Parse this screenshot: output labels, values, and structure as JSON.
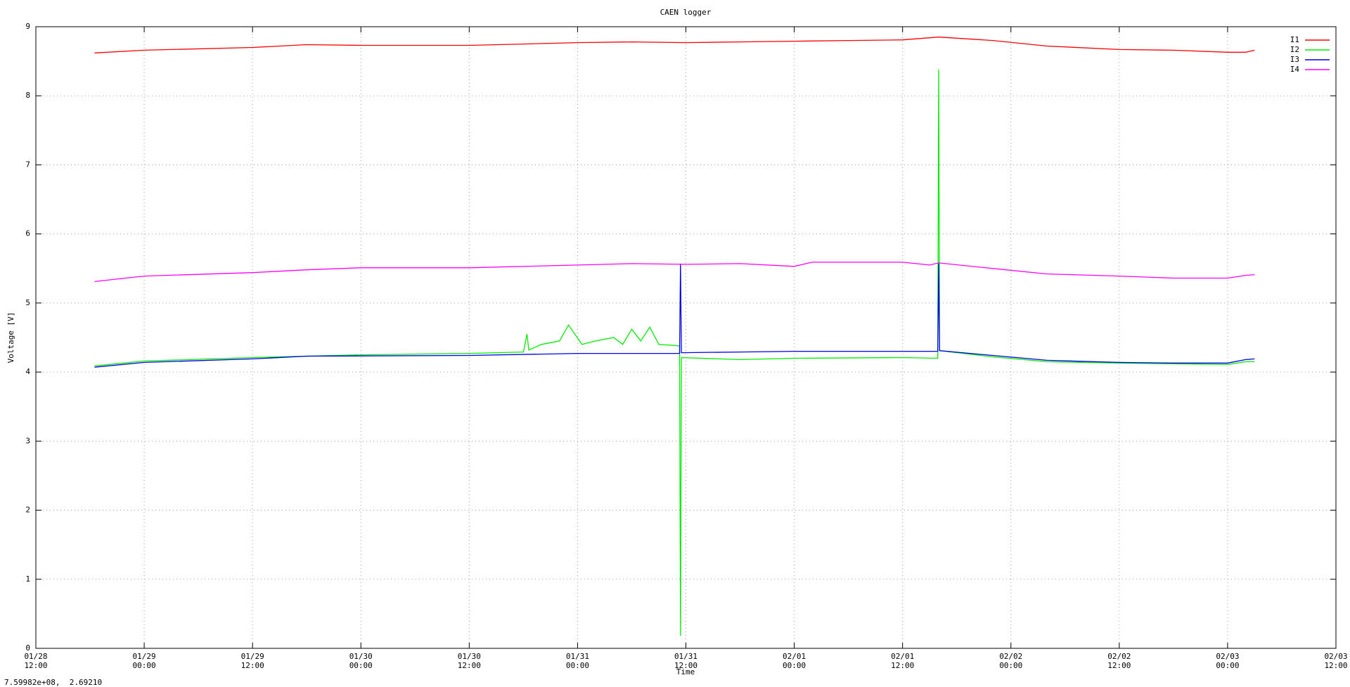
{
  "chart_data": {
    "type": "line",
    "title": "CAEN logger",
    "xlabel": "Time",
    "ylabel": "Voltage [V]",
    "status": "7.59982e+08,  2.69210",
    "grid": true,
    "legend": "upper right",
    "xlim": [
      "01/28 12:00",
      "02/03 12:00"
    ],
    "xticks": [
      "01/28 12:00",
      "01/29 00:00",
      "01/29 12:00",
      "01/30 00:00",
      "01/30 12:00",
      "01/31 00:00",
      "01/31 12:00",
      "02/01 00:00",
      "02/01 12:00",
      "02/02 00:00",
      "02/02 12:00",
      "02/03 00:00",
      "02/03 12:00"
    ],
    "ylim": [
      0,
      9
    ],
    "yticks": [
      0,
      1,
      2,
      3,
      4,
      5,
      6,
      7,
      8,
      9
    ],
    "series": [
      {
        "name": "I1",
        "color": "#ff0000",
        "x": [
          "01/28 18:30",
          "01/29 00:00",
          "01/29 12:00",
          "01/29 18:00",
          "01/30 00:00",
          "01/30 12:00",
          "01/30 18:00",
          "01/31 00:00",
          "01/31 06:00",
          "01/31 12:00",
          "01/31 18:00",
          "02/01 00:00",
          "02/01 06:00",
          "02/01 12:00",
          "02/01 16:00",
          "02/01 22:00",
          "02/02 04:00",
          "02/02 12:00",
          "02/02 18:00",
          "02/03 00:00",
          "02/03 02:00",
          "02/03 03:00"
        ],
        "values": [
          8.62,
          8.66,
          8.7,
          8.74,
          8.73,
          8.73,
          8.75,
          8.77,
          8.78,
          8.77,
          8.78,
          8.79,
          8.8,
          8.81,
          8.85,
          8.8,
          8.72,
          8.67,
          8.66,
          8.63,
          8.63,
          8.66
        ]
      },
      {
        "name": "I2",
        "color": "#00ee00",
        "x": [
          "01/28 18:30",
          "01/29 00:00",
          "01/29 12:00",
          "01/30 00:00",
          "01/30 12:00",
          "01/30 18:00",
          "01/30 18:24",
          "01/30 18:36",
          "01/30 20:00",
          "01/30 22:00",
          "01/30 23:00",
          "01/31 00:30",
          "01/31 02:00",
          "01/31 04:00",
          "01/31 05:00",
          "01/31 06:00",
          "01/31 07:00",
          "01/31 08:00",
          "01/31 09:00",
          "01/31 11:18",
          "01/31 11:24",
          "01/31 11:30",
          "01/31 18:00",
          "02/01 00:00",
          "02/01 12:00",
          "02/01 15:54",
          "02/01 16:00",
          "02/01 16:06",
          "02/01 22:00",
          "02/02 04:00",
          "02/02 12:00",
          "02/02 18:00",
          "02/03 00:00",
          "02/03 02:00",
          "02/03 03:00"
        ],
        "values": [
          4.09,
          4.16,
          4.21,
          4.25,
          4.27,
          4.29,
          4.55,
          4.32,
          4.4,
          4.45,
          4.68,
          4.4,
          4.45,
          4.5,
          4.4,
          4.62,
          4.45,
          4.65,
          4.4,
          4.38,
          0.18,
          4.21,
          4.18,
          4.2,
          4.21,
          4.2,
          8.38,
          4.31,
          4.22,
          4.15,
          4.13,
          4.12,
          4.11,
          4.15,
          4.15
        ]
      },
      {
        "name": "I3",
        "color": "#0000ee",
        "x": [
          "01/28 18:30",
          "01/29 00:00",
          "01/29 12:00",
          "01/29 18:00",
          "01/30 12:00",
          "01/31 00:00",
          "01/31 11:18",
          "01/31 11:24",
          "01/31 11:30",
          "01/31 18:00",
          "02/01 00:00",
          "02/01 15:54",
          "02/01 16:00",
          "02/01 16:06",
          "02/01 22:00",
          "02/02 04:00",
          "02/02 12:00",
          "02/02 18:00",
          "02/03 00:00",
          "02/03 02:00",
          "02/03 03:00"
        ],
        "values": [
          4.07,
          4.14,
          4.19,
          4.23,
          4.24,
          4.27,
          4.27,
          5.57,
          4.28,
          4.29,
          4.3,
          4.3,
          5.57,
          4.31,
          4.24,
          4.17,
          4.14,
          4.13,
          4.13,
          4.18,
          4.19
        ]
      },
      {
        "name": "I4",
        "color": "#ff00ff",
        "x": [
          "01/28 18:30",
          "01/29 00:00",
          "01/29 12:00",
          "01/29 18:00",
          "01/30 00:00",
          "01/30 12:00",
          "01/31 00:00",
          "01/31 06:00",
          "01/31 12:00",
          "01/31 18:00",
          "02/01 00:00",
          "02/01 02:00",
          "02/01 12:00",
          "02/01 15:00",
          "02/01 16:00",
          "02/01 22:00",
          "02/02 04:00",
          "02/02 12:00",
          "02/02 18:00",
          "02/03 00:00",
          "02/03 02:00",
          "02/03 03:00"
        ],
        "values": [
          5.31,
          5.39,
          5.44,
          5.48,
          5.51,
          5.51,
          5.55,
          5.57,
          5.56,
          5.57,
          5.53,
          5.59,
          5.59,
          5.55,
          5.58,
          5.5,
          5.42,
          5.39,
          5.36,
          5.36,
          5.4,
          5.41
        ]
      }
    ]
  }
}
